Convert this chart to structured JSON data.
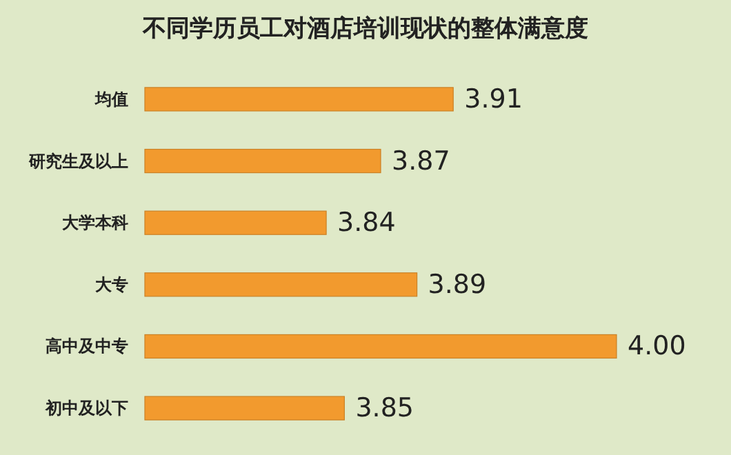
{
  "chart_data": {
    "type": "bar",
    "orientation": "horizontal",
    "title": "不同学历员工对酒店培训现状的整体满意度",
    "categories": [
      "均值",
      "研究生及以上",
      "大学本科",
      "大专",
      "高中及中专",
      "初中及以下"
    ],
    "values": [
      3.91,
      3.87,
      3.84,
      3.89,
      4.0,
      3.85
    ],
    "value_labels": [
      "3.91",
      "3.87",
      "3.84",
      "3.89",
      "4.00",
      "3.85"
    ],
    "color": "#f29a2e",
    "xlim": [
      3.74,
      4.0
    ],
    "tick_labels": "y"
  }
}
